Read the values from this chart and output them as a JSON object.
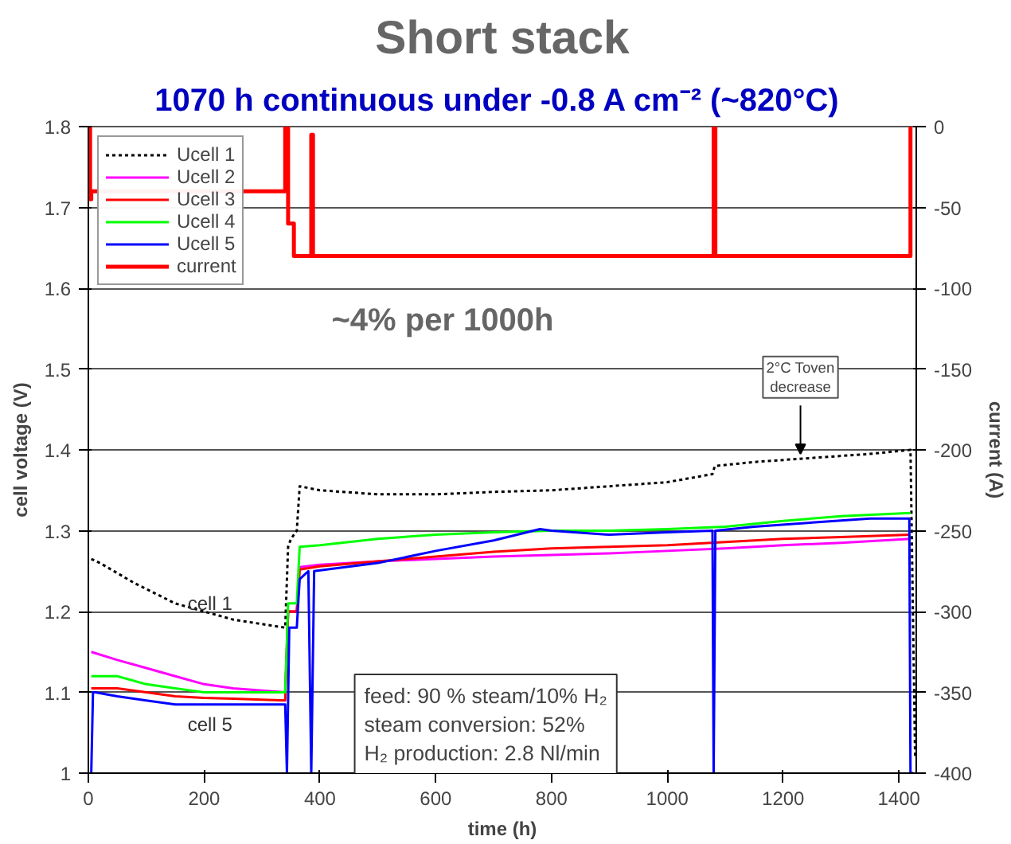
{
  "chart_data": {
    "type": "line",
    "title": "Short stack",
    "subtitle": "1070 h continuous  under -0.8 A cm⁻² (~820°C)",
    "xlabel": "time (h)",
    "ylabel": "cell voltage (V)",
    "y2label": "current (A)",
    "xlim": [
      0,
      1430
    ],
    "ylim": [
      1,
      1.8
    ],
    "y2lim": [
      -400,
      0
    ],
    "xticks": [
      0,
      200,
      400,
      600,
      800,
      1000,
      1200,
      1400
    ],
    "yticks": [
      {
        "value": 1,
        "label": "1"
      },
      1.1,
      1.2,
      1.3,
      1.4,
      1.5,
      1.6,
      1.7,
      1.8
    ],
    "y2ticks": [
      -400,
      -350,
      -300,
      -250,
      -200,
      -150,
      -100,
      -50,
      0
    ],
    "grid": "y",
    "legend": "top left",
    "series": [
      {
        "name": "Ucell 1",
        "color": "#000000",
        "line_style": "dashed",
        "x": [
          5,
          20,
          80,
          150,
          250,
          340,
          345,
          350,
          360,
          365,
          400,
          500,
          600,
          700,
          800,
          900,
          1000,
          1078,
          1082,
          1150,
          1250,
          1350,
          1420,
          1428
        ],
        "values": [
          1.265,
          1.26,
          1.235,
          1.21,
          1.19,
          1.18,
          1.28,
          1.29,
          1.3,
          1.355,
          1.35,
          1.345,
          1.345,
          1.348,
          1.35,
          1.355,
          1.36,
          1.37,
          1.38,
          1.385,
          1.39,
          1.395,
          1.4,
          1.02
        ]
      },
      {
        "name": "Ucell 2",
        "color": "#ff00ff",
        "x": [
          5,
          50,
          100,
          150,
          200,
          250,
          340,
          345,
          360,
          365,
          400,
          500,
          600,
          700,
          800,
          900,
          1000,
          1100,
          1200,
          1300,
          1420
        ],
        "values": [
          1.15,
          1.14,
          1.13,
          1.12,
          1.11,
          1.105,
          1.1,
          1.2,
          1.2,
          1.255,
          1.258,
          1.262,
          1.265,
          1.268,
          1.27,
          1.272,
          1.275,
          1.278,
          1.282,
          1.285,
          1.29
        ]
      },
      {
        "name": "Ucell 3",
        "color": "#ff0000",
        "x": [
          5,
          50,
          100,
          150,
          200,
          250,
          340,
          345,
          360,
          365,
          400,
          500,
          600,
          700,
          800,
          900,
          1000,
          1100,
          1200,
          1300,
          1420
        ],
        "values": [
          1.105,
          1.105,
          1.1,
          1.095,
          1.093,
          1.092,
          1.09,
          1.2,
          1.2,
          1.252,
          1.256,
          1.262,
          1.268,
          1.274,
          1.278,
          1.28,
          1.282,
          1.286,
          1.29,
          1.292,
          1.295
        ]
      },
      {
        "name": "Ucell 4",
        "color": "#00ff00",
        "x": [
          5,
          50,
          100,
          150,
          200,
          250,
          340,
          345,
          360,
          365,
          400,
          500,
          600,
          700,
          800,
          900,
          1000,
          1100,
          1200,
          1300,
          1420
        ],
        "values": [
          1.12,
          1.12,
          1.11,
          1.105,
          1.1,
          1.1,
          1.1,
          1.21,
          1.21,
          1.28,
          1.282,
          1.29,
          1.295,
          1.298,
          1.3,
          1.3,
          1.302,
          1.305,
          1.312,
          1.318,
          1.322
        ]
      },
      {
        "name": "Ucell 5",
        "color": "#0000ff",
        "x": [
          5,
          8,
          12,
          50,
          100,
          150,
          200,
          250,
          340,
          343,
          347,
          360,
          365,
          380,
          385,
          390,
          500,
          600,
          700,
          780,
          800,
          900,
          1000,
          1078,
          1080,
          1083,
          1150,
          1250,
          1350,
          1418,
          1420,
          1425
        ],
        "values": [
          1.0,
          1.1,
          1.1,
          1.095,
          1.09,
          1.085,
          1.085,
          1.085,
          1.085,
          1.0,
          1.18,
          1.18,
          1.24,
          1.25,
          1.0,
          1.25,
          1.26,
          1.275,
          1.288,
          1.302,
          1.3,
          1.295,
          1.298,
          1.3,
          1.0,
          1.3,
          1.305,
          1.31,
          1.315,
          1.315,
          1.0,
          1.0
        ]
      },
      {
        "name": "current",
        "color": "#ff0000",
        "axis": "y2",
        "x": [
          3,
          3,
          5,
          5,
          340,
          340,
          345,
          345,
          350,
          350,
          355,
          355,
          385,
          385,
          388,
          388,
          1080,
          1080,
          1083,
          1083,
          1420,
          1420
        ],
        "values": [
          0,
          -45,
          -45,
          -40,
          -40,
          0,
          0,
          -60,
          -60,
          -60,
          -60,
          -80,
          -80,
          -5,
          -5,
          -80,
          -80,
          0,
          0,
          -80,
          -80,
          0
        ]
      }
    ],
    "annotations": [
      "~4% per 1000h",
      {
        "text": "2°C Toven\ndecrease",
        "x": 1230,
        "y": 1.39
      },
      "cell 1",
      "cell 5",
      "feed: 90 % steam/10% H₂\nsteam conversion: 52%\nH₂ production: 2.8 Nl/min"
    ]
  }
}
